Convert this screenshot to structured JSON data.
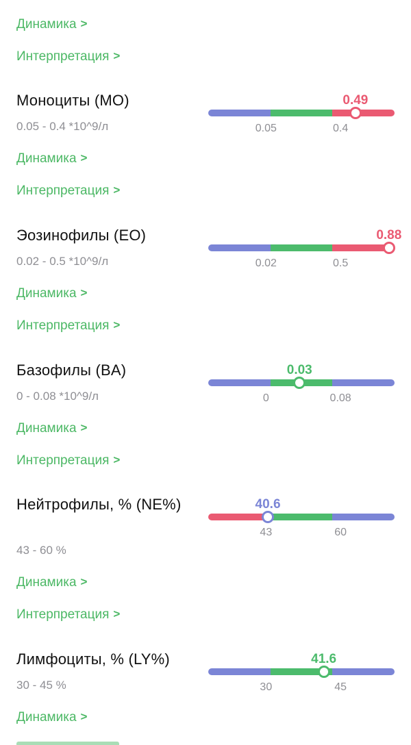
{
  "colors": {
    "low": "#7b85d6",
    "normal": "#4cbb6c",
    "high": "#ea5a72",
    "link": "#4cb865",
    "title": "#111111",
    "muted": "#8e8e93"
  },
  "top_links": {
    "dynamics": "Динамика",
    "interpretation": "Интерпретация"
  },
  "indicators": [
    {
      "title": "Моноциты (MO)",
      "range_text": "0.05 - 0.4 *10^9/л",
      "value": "0.49",
      "status": "high",
      "scale_order": [
        "low",
        "normal",
        "high"
      ],
      "tick_low": "0.05",
      "tick_high": "0.4",
      "marker_fraction": 0.79,
      "dynamics_link": "Динамика",
      "interpretation_link": "Интерпретация"
    },
    {
      "title": "Эозинофилы (EO)",
      "range_text": "0.02 - 0.5 *10^9/л",
      "value": "0.88",
      "status": "high",
      "scale_order": [
        "low",
        "normal",
        "high"
      ],
      "tick_low": "0.02",
      "tick_high": "0.5",
      "marker_fraction": 0.97,
      "dynamics_link": "Динамика",
      "interpretation_link": "Интерпретация"
    },
    {
      "title": "Базофилы (BA)",
      "range_text": "0 - 0.08 *10^9/л",
      "value": "0.03",
      "status": "normal",
      "scale_order": [
        "low",
        "normal",
        "low"
      ],
      "tick_low": "0",
      "tick_high": "0.08",
      "marker_fraction": 0.49,
      "dynamics_link": "Динамика",
      "interpretation_link": "Интерпретация"
    },
    {
      "title": "Нейтрофилы, % (NE%)",
      "range_text": "43 - 60 %",
      "value": "40.6",
      "status": "low",
      "scale_order": [
        "high",
        "normal",
        "low"
      ],
      "tick_low": "43",
      "tick_high": "60",
      "marker_fraction": 0.32,
      "dynamics_link": "Динамика",
      "interpretation_link": "Интерпретация"
    },
    {
      "title": "Лимфоциты, % (LY%)",
      "range_text": "30 - 45 %",
      "value": "41.6",
      "status": "normal",
      "scale_order": [
        "low",
        "normal",
        "low"
      ],
      "tick_low": "30",
      "tick_high": "45",
      "marker_fraction": 0.62,
      "dynamics_link": "Динамика",
      "interpretation_link": null
    }
  ]
}
